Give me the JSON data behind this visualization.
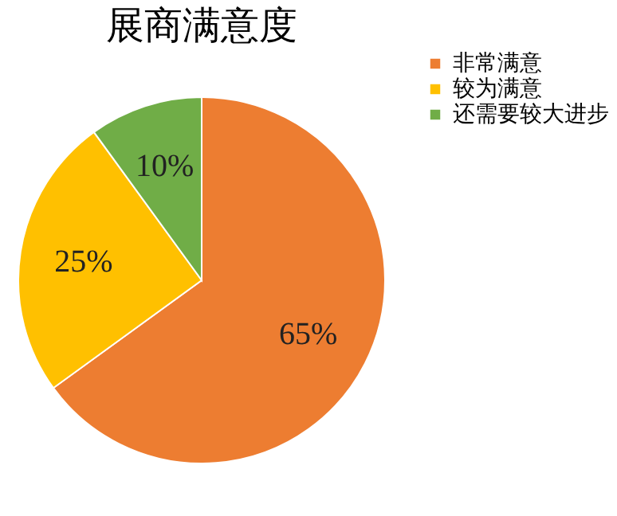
{
  "chart_data": {
    "type": "pie",
    "title": "展商满意度",
    "categories": [
      "非常满意",
      "较为满意",
      "还需要较大进步"
    ],
    "values": [
      65,
      25,
      10
    ],
    "colors": [
      "#ed7d31",
      "#ffc000",
      "#70ad47"
    ],
    "value_labels": [
      "65%",
      "25%",
      "10%"
    ],
    "legend": "right"
  }
}
